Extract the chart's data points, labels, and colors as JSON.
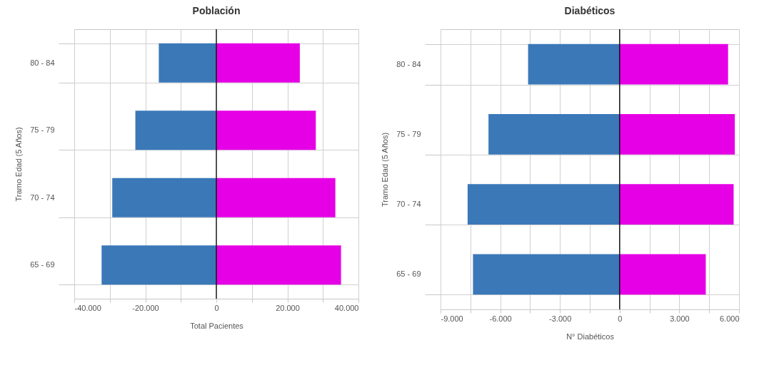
{
  "chart_data": [
    {
      "type": "bar",
      "orientation": "horizontal",
      "stacked": true,
      "title": "Población",
      "xlabel": "Total Pacientes",
      "ylabel": "Tramo Edad (5 Años)",
      "categories": [
        "80 - 84",
        "75 - 79",
        "70 - 74",
        "65 - 69"
      ],
      "series": [
        {
          "color": "#3a78b8",
          "values": [
            -16200,
            -22800,
            -29300,
            -32300
          ]
        },
        {
          "color": "#e600e6",
          "values": [
            23500,
            28000,
            33500,
            35100
          ]
        }
      ],
      "xlim": [
        -40000,
        40000
      ],
      "xticks": [
        {
          "value": -40000,
          "label": "-40.000"
        },
        {
          "value": -30000,
          "label": null
        },
        {
          "value": -20000,
          "label": "-20.000"
        },
        {
          "value": -10000,
          "label": null
        },
        0,
        {
          "value": 10000,
          "label": null
        },
        {
          "value": 20000,
          "label": "20.000"
        },
        {
          "value": 30000,
          "label": null
        },
        {
          "value": 40000,
          "label": "40.000"
        }
      ],
      "ref_lines": [
        {
          "axis": "x",
          "value": 0,
          "color": "#000000"
        }
      ],
      "grid": true,
      "legend": false
    },
    {
      "type": "bar",
      "orientation": "horizontal",
      "stacked": true,
      "title": "Diabéticos",
      "xlabel": "N° Diabéticos",
      "ylabel": "Tramo Edad (5 Años)",
      "categories": [
        "80 - 84",
        "75 - 79",
        "70 - 74",
        "65 - 69"
      ],
      "series": [
        {
          "color": "#3a78b8",
          "values": [
            -4600,
            -6590,
            -7640,
            -7370
          ]
        },
        {
          "color": "#e600e6",
          "values": [
            5450,
            5790,
            5730,
            4330
          ]
        }
      ],
      "xlim": [
        -9000,
        6000
      ],
      "xticks": [
        {
          "value": -9000,
          "label": "-9.000"
        },
        {
          "value": -7500,
          "label": null
        },
        {
          "value": -6000,
          "label": "-6.000"
        },
        {
          "value": -4500,
          "label": null
        },
        {
          "value": -3000,
          "label": "-3.000"
        },
        {
          "value": -1500,
          "label": null
        },
        0,
        {
          "value": 1500,
          "label": null
        },
        {
          "value": 3000,
          "label": "3.000"
        },
        {
          "value": 4500,
          "label": null
        },
        {
          "value": 6000,
          "label": "6.000"
        }
      ],
      "ref_lines": [
        {
          "axis": "x",
          "value": 0,
          "color": "#000000"
        }
      ],
      "grid": true,
      "legend": false
    }
  ]
}
